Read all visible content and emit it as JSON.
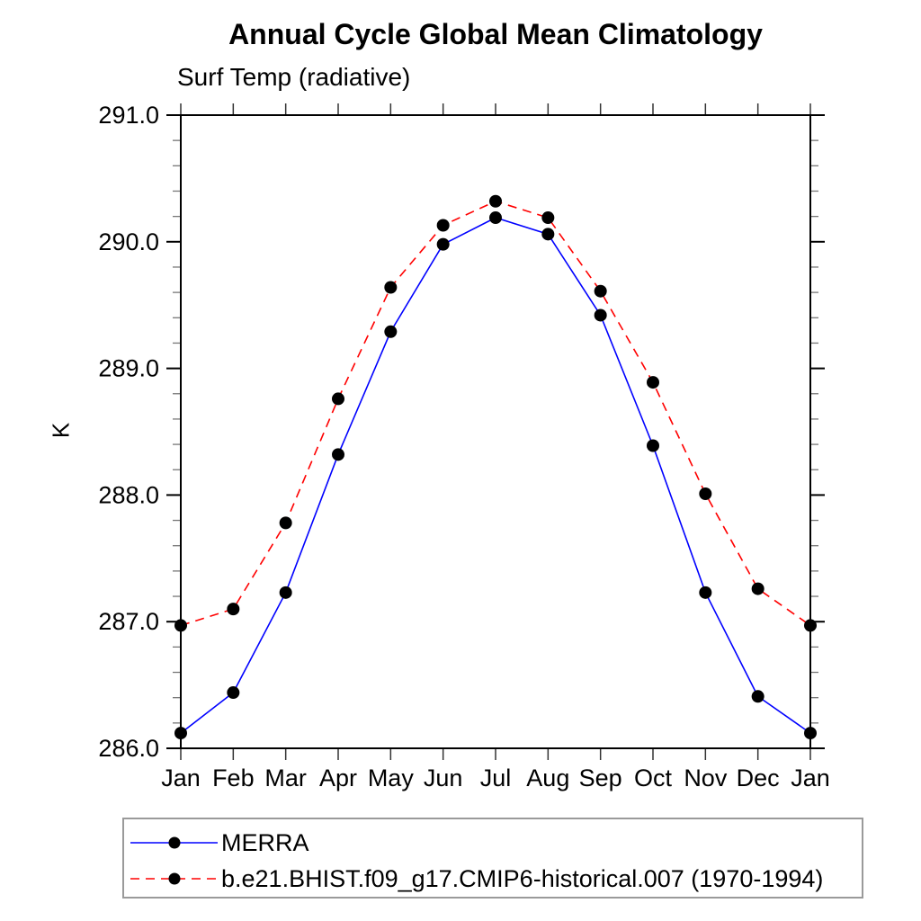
{
  "title": "Annual Cycle Global Mean Climatology",
  "subtitle": "Surf Temp (radiative)",
  "y_axis_title": "K",
  "colors": {
    "axis": "#000000",
    "minor_tick": "#777777",
    "month_tick": "#333333",
    "marker": "#000000",
    "legend_border": "#9a9a9a",
    "merra_line": "#0000ff",
    "model_line": "#ff0000"
  },
  "chart_data": {
    "type": "line",
    "title": "Annual Cycle Global Mean Climatology",
    "subtitle": "Surf Temp (radiative)",
    "xlabel": "",
    "ylabel": "K",
    "x_labels": [
      "Jan",
      "Feb",
      "Mar",
      "Apr",
      "May",
      "Jun",
      "Jul",
      "Aug",
      "Sep",
      "Oct",
      "Nov",
      "Dec",
      "Jan"
    ],
    "ylim": [
      286.0,
      291.0
    ],
    "y_major_ticks": [
      286.0,
      287.0,
      288.0,
      289.0,
      290.0,
      291.0
    ],
    "y_minor_step": 0.2,
    "grid": false,
    "legend_position": "bottom-left-outside",
    "marker": "filled-circle",
    "series": [
      {
        "name": "MERRA",
        "color": "#0000ff",
        "line_style": "solid",
        "values": [
          286.12,
          286.44,
          287.23,
          288.32,
          289.29,
          289.98,
          290.19,
          290.06,
          289.42,
          288.39,
          287.23,
          286.41,
          286.12
        ]
      },
      {
        "name": "b.e21.BHIST.f09_g17.CMIP6-historical.007 (1970-1994)",
        "color": "#ff0000",
        "line_style": "dashed",
        "values": [
          286.97,
          287.1,
          287.78,
          288.76,
          289.64,
          290.13,
          290.32,
          290.19,
          289.61,
          288.89,
          288.01,
          287.26,
          286.97
        ]
      }
    ]
  }
}
